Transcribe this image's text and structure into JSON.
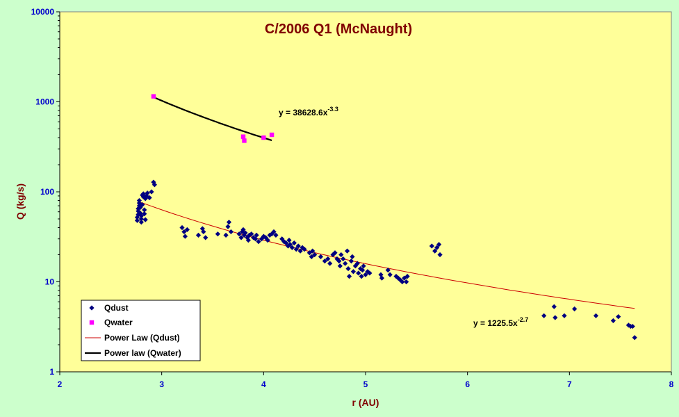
{
  "chart_data": {
    "type": "scatter",
    "title": "C/2006 Q1 (McNaught)",
    "xlabel": "r (AU)",
    "ylabel": "Q (kg/s)",
    "xlim": [
      2,
      8
    ],
    "ylim": [
      1,
      10000
    ],
    "yscale": "log",
    "x_ticks": [
      "2",
      "3",
      "4",
      "5",
      "6",
      "7",
      "8"
    ],
    "y_ticks": [
      "1",
      "10",
      "100",
      "1000",
      "10000"
    ],
    "grid": false,
    "legend_position": "bottom-left",
    "colors": {
      "plot_background": "#ffff99",
      "page_background": "#ccffcc",
      "qdust": "#000080",
      "qwater": "#ff00ff",
      "fit_qdust": "#cc0000",
      "fit_qwater": "#000000"
    },
    "series": [
      {
        "name": "Qdust",
        "marker": "diamond",
        "points": [
          [
            2.76,
            48
          ],
          [
            2.76,
            52
          ],
          [
            2.77,
            56
          ],
          [
            2.77,
            61
          ],
          [
            2.77,
            65
          ],
          [
            2.78,
            70
          ],
          [
            2.78,
            75
          ],
          [
            2.78,
            80
          ],
          [
            2.79,
            58
          ],
          [
            2.79,
            67
          ],
          [
            2.8,
            46
          ],
          [
            2.8,
            50
          ],
          [
            2.8,
            54
          ],
          [
            2.81,
            72
          ],
          [
            2.81,
            92
          ],
          [
            2.82,
            88
          ],
          [
            2.82,
            95
          ],
          [
            2.83,
            63
          ],
          [
            2.83,
            57
          ],
          [
            2.84,
            49
          ],
          [
            2.84,
            84
          ],
          [
            2.85,
            90
          ],
          [
            2.86,
            97
          ],
          [
            2.88,
            86
          ],
          [
            2.9,
            100
          ],
          [
            2.92,
            128
          ],
          [
            2.93,
            120
          ],
          [
            3.2,
            40
          ],
          [
            3.22,
            36
          ],
          [
            3.23,
            32
          ],
          [
            3.25,
            38
          ],
          [
            3.36,
            33
          ],
          [
            3.4,
            39
          ],
          [
            3.41,
            36
          ],
          [
            3.43,
            31
          ],
          [
            3.55,
            34
          ],
          [
            3.63,
            33
          ],
          [
            3.65,
            41
          ],
          [
            3.66,
            46
          ],
          [
            3.68,
            36
          ],
          [
            3.76,
            34
          ],
          [
            3.78,
            31
          ],
          [
            3.79,
            36
          ],
          [
            3.8,
            38
          ],
          [
            3.81,
            33
          ],
          [
            3.82,
            35
          ],
          [
            3.84,
            31
          ],
          [
            3.85,
            29
          ],
          [
            3.86,
            33
          ],
          [
            3.88,
            34
          ],
          [
            3.9,
            31
          ],
          [
            3.92,
            30
          ],
          [
            3.93,
            33
          ],
          [
            3.95,
            28
          ],
          [
            3.98,
            30
          ],
          [
            4.0,
            32
          ],
          [
            4.02,
            31
          ],
          [
            4.04,
            29
          ],
          [
            4.06,
            33
          ],
          [
            4.08,
            34
          ],
          [
            4.1,
            36
          ],
          [
            4.12,
            33
          ],
          [
            4.18,
            30
          ],
          [
            4.2,
            28
          ],
          [
            4.22,
            27
          ],
          [
            4.24,
            25
          ],
          [
            4.25,
            29
          ],
          [
            4.26,
            26
          ],
          [
            4.28,
            24
          ],
          [
            4.3,
            27
          ],
          [
            4.32,
            23
          ],
          [
            4.34,
            25
          ],
          [
            4.36,
            22
          ],
          [
            4.38,
            24
          ],
          [
            4.4,
            23
          ],
          [
            4.45,
            21
          ],
          [
            4.47,
            19
          ],
          [
            4.48,
            22
          ],
          [
            4.5,
            20
          ],
          [
            4.56,
            19
          ],
          [
            4.6,
            17
          ],
          [
            4.63,
            18
          ],
          [
            4.65,
            16
          ],
          [
            4.68,
            20
          ],
          [
            4.7,
            21
          ],
          [
            4.72,
            18
          ],
          [
            4.74,
            17
          ],
          [
            4.75,
            15
          ],
          [
            4.76,
            20
          ],
          [
            4.78,
            18
          ],
          [
            4.8,
            16
          ],
          [
            4.82,
            22
          ],
          [
            4.83,
            14
          ],
          [
            4.84,
            11.5
          ],
          [
            4.86,
            17
          ],
          [
            4.87,
            19
          ],
          [
            4.88,
            13
          ],
          [
            4.9,
            15
          ],
          [
            4.92,
            16
          ],
          [
            4.93,
            12.5
          ],
          [
            4.95,
            14
          ],
          [
            4.96,
            11.5
          ],
          [
            4.97,
            13.5
          ],
          [
            4.98,
            15
          ],
          [
            5.0,
            12
          ],
          [
            5.02,
            13
          ],
          [
            5.04,
            12.5
          ],
          [
            5.15,
            12
          ],
          [
            5.16,
            11
          ],
          [
            5.22,
            13.5
          ],
          [
            5.24,
            12
          ],
          [
            5.3,
            11.5
          ],
          [
            5.32,
            11
          ],
          [
            5.34,
            10.5
          ],
          [
            5.36,
            10
          ],
          [
            5.38,
            11
          ],
          [
            5.4,
            10
          ],
          [
            5.41,
            11.5
          ],
          [
            5.65,
            25
          ],
          [
            5.68,
            22
          ],
          [
            5.7,
            24
          ],
          [
            5.72,
            26
          ],
          [
            5.73,
            20
          ],
          [
            6.75,
            4.2
          ],
          [
            6.85,
            5.3
          ],
          [
            6.86,
            4
          ],
          [
            6.95,
            4.2
          ],
          [
            7.05,
            5
          ],
          [
            7.26,
            4.2
          ],
          [
            7.43,
            3.7
          ],
          [
            7.48,
            4.1
          ],
          [
            7.58,
            3.3
          ],
          [
            7.6,
            3.2
          ],
          [
            7.62,
            3.2
          ],
          [
            7.64,
            2.4
          ]
        ]
      },
      {
        "name": "Qwater",
        "marker": "square",
        "points": [
          [
            2.92,
            1150
          ],
          [
            3.8,
            410
          ],
          [
            3.81,
            370
          ],
          [
            4.0,
            400
          ],
          [
            4.08,
            430
          ]
        ]
      }
    ],
    "fits": [
      {
        "name": "Power Law (Qdust)",
        "coef": 1225.5,
        "exponent": -2.7,
        "x_range": [
          2.8,
          7.64
        ],
        "equation_prefix": "y = 1225.5x",
        "equation_exponent": "-2.7"
      },
      {
        "name": "Power law (Qwater)",
        "coef": 38628.6,
        "exponent": -3.3,
        "x_range": [
          2.92,
          4.08
        ],
        "equation_prefix": "y = 38628.6x",
        "equation_exponent": "-3.3"
      }
    ],
    "legend": [
      {
        "label": "Qdust",
        "type": "diamond"
      },
      {
        "label": "Qwater",
        "type": "square"
      },
      {
        "label": "Power Law (Qdust)",
        "type": "line-red"
      },
      {
        "label": "Power law (Qwater)",
        "type": "line-black"
      }
    ]
  }
}
